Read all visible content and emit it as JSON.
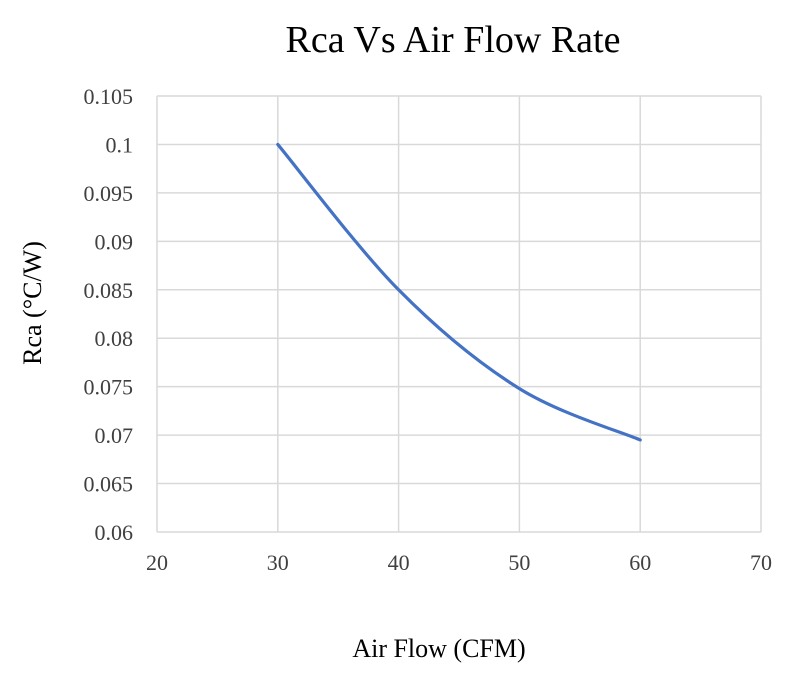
{
  "chart_data": {
    "type": "line",
    "title": "Rca Vs Air Flow Rate",
    "xlabel": "Air Flow (CFM)",
    "ylabel": "Rca (°C/W)",
    "xlim": [
      20,
      70
    ],
    "ylim": [
      0.06,
      0.105
    ],
    "xticks": [
      20,
      30,
      40,
      50,
      60,
      70
    ],
    "xtick_labels": [
      "20",
      "30",
      "40",
      "50",
      "60",
      "70"
    ],
    "yticks": [
      0.06,
      0.065,
      0.07,
      0.075,
      0.08,
      0.085,
      0.09,
      0.095,
      0.1,
      0.105
    ],
    "ytick_labels": [
      "0.06",
      "0.065",
      "0.07",
      "0.075",
      "0.08",
      "0.085",
      "0.09",
      "0.095",
      "0.1",
      "0.105"
    ],
    "grid": true,
    "smooth": true,
    "series": [
      {
        "name": "Rca",
        "color": "#4472c4",
        "x": [
          30,
          40,
          50,
          60
        ],
        "y": [
          0.1,
          0.085,
          0.0748,
          0.0695
        ]
      }
    ]
  }
}
